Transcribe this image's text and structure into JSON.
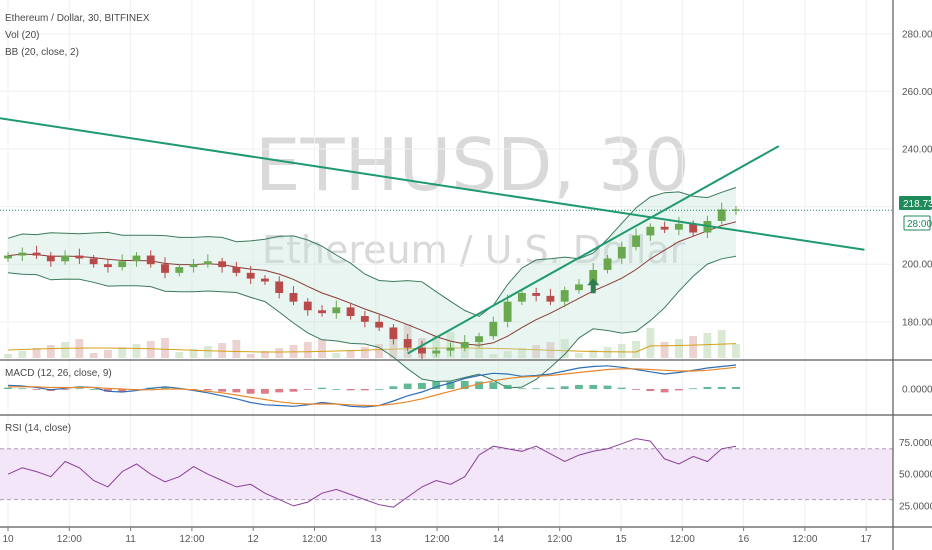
{
  "header": {
    "symbol_line": "Ethereum / Dollar, 30, BITFINEX",
    "vol_label": "Vol (20)",
    "bb_label": "BB (20, close, 2)"
  },
  "watermark": {
    "big": "ETHUSD, 30",
    "small": "Ethereum / U.S. Dollar"
  },
  "colors": {
    "up": "#6aa84f",
    "down": "#b84a4a",
    "trend": "#1e9a6e",
    "bb_band": "#3d7a5c",
    "bb_mid": "#8b3a3a",
    "macd": "#2f6fb5",
    "signal": "#e8872c",
    "rsi": "#8a3f9a",
    "rsi_band": "#f3e6f8",
    "vol_ma": "#d4a017",
    "price_badge": "#1f8a5a"
  },
  "price_badge": {
    "value": "218.73",
    "countdown": "28:00"
  },
  "panes": {
    "macd_label": "MACD (12, 26, close, 9)",
    "rsi_label": "RSI (14, close)"
  },
  "chart_data": {
    "type": "line",
    "title": "Ethereum / Dollar, 30, BITFINEX",
    "x_ticks": [
      "10",
      "12:00",
      "11",
      "12:00",
      "12",
      "12:00",
      "13",
      "12:00",
      "14",
      "12:00",
      "15",
      "12:00",
      "16",
      "12:00",
      "17"
    ],
    "price_axis": {
      "ticks": [
        "280.00",
        "260.00",
        "240.00",
        "220.00",
        "200.00",
        "180.00"
      ],
      "ylim": [
        165,
        290
      ]
    },
    "macd_axis": {
      "ticks": [
        "0.0000"
      ]
    },
    "rsi_axis": {
      "ticks": [
        "75.0000",
        "50.0000",
        "25.0000"
      ],
      "ylim": [
        10,
        95
      ],
      "band": [
        30,
        70
      ]
    },
    "x_range": [
      0,
      62
    ],
    "close_prices": [
      203,
      204,
      203,
      201,
      203,
      202,
      200,
      199,
      201,
      203,
      200,
      197,
      199,
      200,
      201,
      199,
      197,
      195,
      194,
      190,
      187,
      184,
      183,
      185,
      182,
      180,
      178,
      174,
      171,
      169,
      170,
      171,
      173,
      175,
      180,
      187,
      190,
      189,
      187,
      191,
      193,
      198,
      202,
      206,
      210,
      213,
      212,
      214,
      211,
      215,
      219,
      219
    ],
    "trendlines": [
      {
        "from": [
          -1,
          251
        ],
        "to": [
          60,
          205
        ]
      },
      {
        "from": [
          28,
          169
        ],
        "to": [
          54,
          241
        ]
      }
    ],
    "arrow_annotation": {
      "x": 41,
      "y": 192
    },
    "rsi_values": [
      50,
      55,
      52,
      48,
      60,
      55,
      45,
      40,
      52,
      58,
      50,
      44,
      48,
      56,
      50,
      45,
      40,
      42,
      35,
      30,
      25,
      28,
      35,
      38,
      34,
      30,
      26,
      24,
      32,
      40,
      45,
      42,
      48,
      65,
      72,
      70,
      68,
      72,
      66,
      60,
      65,
      68,
      70,
      74,
      78,
      76,
      62,
      58,
      64,
      60,
      70,
      72
    ],
    "macd_values": [
      0.5,
      0.4,
      0.2,
      -0.1,
      0.1,
      0.3,
      0.2,
      -0.3,
      -0.4,
      -0.2,
      0.1,
      0.3,
      0.1,
      -0.2,
      -0.5,
      -0.9,
      -1.3,
      -1.8,
      -2.1,
      -2.2,
      -2.3,
      -2.1,
      -1.8,
      -2.0,
      -2.3,
      -2.4,
      -2.2,
      -1.6,
      -0.9,
      -0.4,
      0.3,
      0.8,
      1.4,
      1.8,
      2.1,
      2.0,
      1.7,
      1.8,
      2.0,
      2.4,
      2.8,
      3.0,
      3.1,
      2.9,
      2.6,
      2.3,
      2.0,
      2.2,
      2.5,
      2.8,
      3.0,
      3.2
    ],
    "signal_values": [
      0.3,
      0.3,
      0.3,
      0.2,
      0.2,
      0.2,
      0.2,
      0.1,
      0.0,
      -0.1,
      -0.1,
      0.0,
      0.0,
      -0.1,
      -0.3,
      -0.5,
      -0.8,
      -1.1,
      -1.4,
      -1.7,
      -1.9,
      -2.0,
      -2.0,
      -2.0,
      -2.1,
      -2.2,
      -2.2,
      -2.0,
      -1.7,
      -1.3,
      -0.8,
      -0.3,
      0.2,
      0.7,
      1.1,
      1.4,
      1.6,
      1.7,
      1.8,
      2.0,
      2.2,
      2.4,
      2.6,
      2.7,
      2.7,
      2.6,
      2.5,
      2.4,
      2.4,
      2.5,
      2.7,
      2.9
    ]
  }
}
